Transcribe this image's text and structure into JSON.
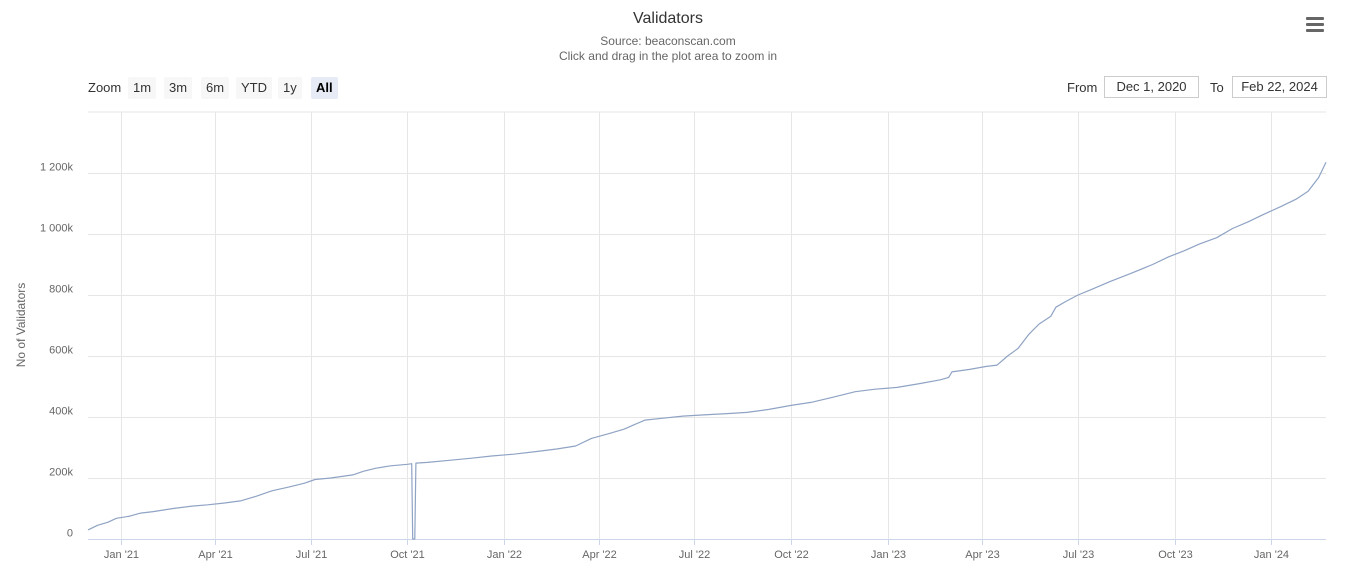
{
  "chart_data": {
    "type": "line",
    "title": "Validators",
    "subtitle_lines": [
      "Source: beaconscan.com",
      "Click and drag in the plot area to zoom in"
    ],
    "ylabel": "No of Validators",
    "xlabel": "",
    "x_range": [
      "2020-12-01",
      "2024-02-22"
    ],
    "ylim": [
      0,
      1400000
    ],
    "x_ticks": [
      {
        "date": "2021-01-01",
        "label": "Jan '21"
      },
      {
        "date": "2021-04-01",
        "label": "Apr '21"
      },
      {
        "date": "2021-07-01",
        "label": "Jul '21"
      },
      {
        "date": "2021-10-01",
        "label": "Oct '21"
      },
      {
        "date": "2022-01-01",
        "label": "Jan '22"
      },
      {
        "date": "2022-04-01",
        "label": "Apr '22"
      },
      {
        "date": "2022-07-01",
        "label": "Jul '22"
      },
      {
        "date": "2022-10-01",
        "label": "Oct '22"
      },
      {
        "date": "2023-01-01",
        "label": "Jan '23"
      },
      {
        "date": "2023-04-01",
        "label": "Apr '23"
      },
      {
        "date": "2023-07-01",
        "label": "Jul '23"
      },
      {
        "date": "2023-10-01",
        "label": "Oct '23"
      },
      {
        "date": "2024-01-01",
        "label": "Jan '24"
      }
    ],
    "y_ticks": [
      {
        "value": 0,
        "label": "0"
      },
      {
        "value": 200000,
        "label": "200k"
      },
      {
        "value": 400000,
        "label": "400k"
      },
      {
        "value": 600000,
        "label": "600k"
      },
      {
        "value": 800000,
        "label": "800k"
      },
      {
        "value": 1000000,
        "label": "1 000k"
      },
      {
        "value": 1200000,
        "label": "1 200k"
      }
    ],
    "grid": true,
    "legend": "none",
    "series": [
      {
        "color": "#8fa3c4",
        "points": [
          [
            "2020-12-01",
            30000
          ],
          [
            "2020-12-10",
            45000
          ],
          [
            "2020-12-20",
            55000
          ],
          [
            "2020-12-28",
            68000
          ],
          [
            "2021-01-10",
            75000
          ],
          [
            "2021-01-20",
            85000
          ],
          [
            "2021-02-01",
            90000
          ],
          [
            "2021-02-20",
            100000
          ],
          [
            "2021-03-10",
            108000
          ],
          [
            "2021-03-25",
            112000
          ],
          [
            "2021-04-10",
            118000
          ],
          [
            "2021-04-25",
            125000
          ],
          [
            "2021-05-10",
            140000
          ],
          [
            "2021-05-25",
            158000
          ],
          [
            "2021-06-10",
            170000
          ],
          [
            "2021-06-25",
            183000
          ],
          [
            "2021-07-05",
            195000
          ],
          [
            "2021-07-20",
            200000
          ],
          [
            "2021-08-10",
            210000
          ],
          [
            "2021-08-20",
            222000
          ],
          [
            "2021-09-01",
            232000
          ],
          [
            "2021-09-15",
            240000
          ],
          [
            "2021-10-01",
            245000
          ],
          [
            "2021-10-05",
            247000
          ],
          [
            "2021-10-06",
            0
          ],
          [
            "2021-10-08",
            0
          ],
          [
            "2021-10-09",
            249000
          ],
          [
            "2021-10-20",
            251000
          ],
          [
            "2021-11-10",
            258000
          ],
          [
            "2021-12-01",
            265000
          ],
          [
            "2021-12-20",
            272000
          ],
          [
            "2022-01-10",
            278000
          ],
          [
            "2022-02-01",
            287000
          ],
          [
            "2022-02-20",
            295000
          ],
          [
            "2022-03-10",
            305000
          ],
          [
            "2022-03-25",
            330000
          ],
          [
            "2022-04-10",
            345000
          ],
          [
            "2022-04-25",
            360000
          ],
          [
            "2022-05-05",
            375000
          ],
          [
            "2022-05-15",
            390000
          ],
          [
            "2022-06-01",
            396000
          ],
          [
            "2022-06-20",
            403000
          ],
          [
            "2022-07-10",
            407000
          ],
          [
            "2022-08-01",
            411000
          ],
          [
            "2022-08-20",
            415000
          ],
          [
            "2022-09-10",
            425000
          ],
          [
            "2022-10-01",
            438000
          ],
          [
            "2022-10-20",
            448000
          ],
          [
            "2022-11-10",
            465000
          ],
          [
            "2022-12-01",
            483000
          ],
          [
            "2022-12-20",
            491000
          ],
          [
            "2023-01-10",
            497000
          ],
          [
            "2023-02-01",
            510000
          ],
          [
            "2023-02-20",
            522000
          ],
          [
            "2023-02-28",
            530000
          ],
          [
            "2023-03-03",
            548000
          ],
          [
            "2023-03-20",
            556000
          ],
          [
            "2023-04-05",
            566000
          ],
          [
            "2023-04-15",
            570000
          ],
          [
            "2023-04-25",
            600000
          ],
          [
            "2023-05-05",
            625000
          ],
          [
            "2023-05-15",
            670000
          ],
          [
            "2023-05-25",
            705000
          ],
          [
            "2023-06-05",
            730000
          ],
          [
            "2023-06-10",
            760000
          ],
          [
            "2023-06-20",
            780000
          ],
          [
            "2023-07-01",
            800000
          ],
          [
            "2023-07-15",
            820000
          ],
          [
            "2023-08-01",
            845000
          ],
          [
            "2023-08-20",
            870000
          ],
          [
            "2023-09-10",
            900000
          ],
          [
            "2023-09-25",
            925000
          ],
          [
            "2023-10-10",
            945000
          ],
          [
            "2023-10-25",
            968000
          ],
          [
            "2023-11-10",
            988000
          ],
          [
            "2023-11-25",
            1018000
          ],
          [
            "2023-12-10",
            1040000
          ],
          [
            "2023-12-25",
            1065000
          ],
          [
            "2024-01-10",
            1090000
          ],
          [
            "2024-01-25",
            1115000
          ],
          [
            "2024-02-05",
            1140000
          ],
          [
            "2024-02-15",
            1185000
          ],
          [
            "2024-02-22",
            1235000
          ]
        ]
      }
    ]
  },
  "controls": {
    "zoom_label": "Zoom",
    "zoom_buttons": [
      "1m",
      "3m",
      "6m",
      "YTD",
      "1y",
      "All"
    ],
    "active_zoom": "All",
    "from_label": "From",
    "from_value": "Dec 1, 2020",
    "to_label": "To",
    "to_value": "Feb 22, 2024"
  },
  "icons": {
    "menu": "hamburger-menu-icon"
  }
}
